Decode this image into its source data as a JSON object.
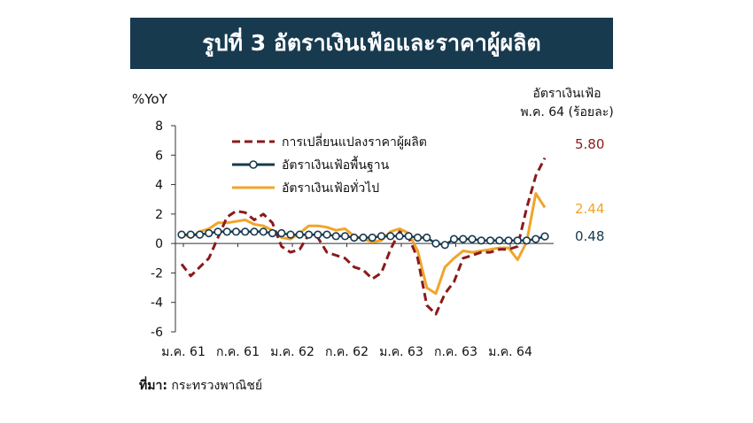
{
  "title": "รูปที่ 3 อัตราเงินเฟ้อและราคาผู้ผลิต",
  "source": {
    "label": "ที่มา:",
    "text": " กระทรวงพาณิชย์"
  },
  "colors": {
    "banner": "#173a4f",
    "ppi": "#8b1a1a",
    "core": "#173a4f",
    "headline": "#f0a52a"
  },
  "chart_data": {
    "type": "line",
    "ylabel": "%YoY",
    "ylim": [
      -6,
      8
    ],
    "yticks": [
      8,
      6,
      4,
      2,
      0,
      -2,
      -4,
      -6
    ],
    "xtick_labels": [
      "ม.ค. 61",
      "ก.ค. 61",
      "ม.ค. 62",
      "ก.ค. 62",
      "ม.ค. 63",
      "ก.ค. 63",
      "ม.ค. 64"
    ],
    "xtick_index": [
      0,
      6,
      12,
      18,
      24,
      30,
      36
    ],
    "grid": false,
    "legend": "top-left",
    "annotation_title": [
      "อัตราเงินเฟ้อ",
      "พ.ค. 64 (ร้อยละ)"
    ],
    "series": [
      {
        "name": "การเปลี่ยนแปลงราคาผู้ผลิต",
        "style": "dashed",
        "end_label": "5.80",
        "values": [
          -1.4,
          -2.2,
          -1.6,
          -1.0,
          0.4,
          1.8,
          2.2,
          2.1,
          1.6,
          2.0,
          1.4,
          -0.2,
          -0.6,
          -0.4,
          0.6,
          0.4,
          -0.6,
          -0.8,
          -1.0,
          -1.6,
          -1.8,
          -2.4,
          -2.0,
          -0.4,
          0.8,
          0.4,
          -1.0,
          -4.2,
          -4.8,
          -3.4,
          -2.6,
          -1.0,
          -0.8,
          -0.6,
          -0.6,
          -0.4,
          -0.4,
          -0.2,
          2.4,
          4.6,
          5.8
        ]
      },
      {
        "name": "อัตราเงินเฟ้อพื้นฐาน",
        "style": "marker",
        "end_label": "0.48",
        "values": [
          0.6,
          0.6,
          0.6,
          0.7,
          0.8,
          0.8,
          0.8,
          0.8,
          0.8,
          0.8,
          0.7,
          0.7,
          0.6,
          0.6,
          0.6,
          0.6,
          0.6,
          0.5,
          0.5,
          0.4,
          0.4,
          0.4,
          0.5,
          0.5,
          0.5,
          0.5,
          0.4,
          0.4,
          0.0,
          -0.1,
          0.3,
          0.3,
          0.3,
          0.2,
          0.2,
          0.2,
          0.2,
          0.2,
          0.2,
          0.3,
          0.48
        ]
      },
      {
        "name": "อัตราเงินเฟ้อทั่วไป",
        "style": "solid",
        "end_label": "2.44",
        "values": [
          0.7,
          0.4,
          0.8,
          1.0,
          1.4,
          1.4,
          1.5,
          1.6,
          1.3,
          1.2,
          0.9,
          0.4,
          0.3,
          0.7,
          1.2,
          1.2,
          1.1,
          0.9,
          1.0,
          0.5,
          0.3,
          0.1,
          0.2,
          0.8,
          1.0,
          0.7,
          -0.5,
          -3.0,
          -3.4,
          -1.6,
          -1.0,
          -0.5,
          -0.6,
          -0.5,
          -0.4,
          -0.3,
          -0.3,
          -1.1,
          0.1,
          3.4,
          2.44
        ]
      }
    ]
  }
}
